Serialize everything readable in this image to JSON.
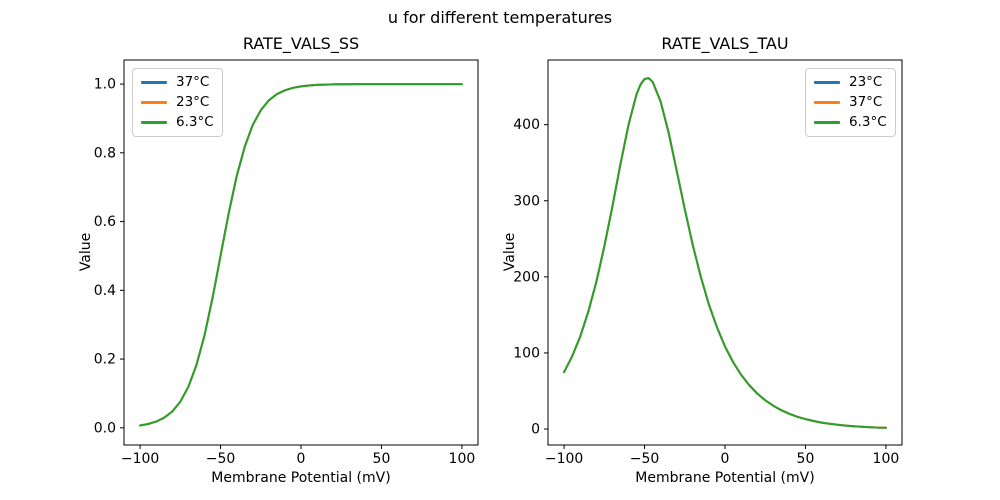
{
  "figure": {
    "suptitle": "u for different temperatures",
    "background_color": "#ffffff",
    "text_color": "#000000",
    "spine_color": "#000000"
  },
  "chart_data": [
    {
      "type": "line",
      "title": "RATE_VALS_SS",
      "xlabel": "Membrane Potential (mV)",
      "ylabel": "Value",
      "grid": false,
      "legend_position": "upper-left",
      "xlim": [
        -110,
        110
      ],
      "ylim": [
        -0.05,
        1.07
      ],
      "xticks": [
        -100,
        -50,
        0,
        50,
        100
      ],
      "xtick_labels": [
        "−100",
        "−50",
        "0",
        "50",
        "100"
      ],
      "yticks": [
        0.0,
        0.2,
        0.4,
        0.6,
        0.8,
        1.0
      ],
      "ytick_labels": [
        "0.0",
        "0.2",
        "0.4",
        "0.6",
        "0.8",
        "1.0"
      ],
      "note": "All three temperature curves overlap exactly; only the last-drawn green curve is visible. Sigmoid: half-max at -50 mV.",
      "x": [
        -100,
        -95,
        -90,
        -85,
        -80,
        -75,
        -70,
        -65,
        -60,
        -55,
        -52.5,
        -50,
        -47.5,
        -45,
        -40,
        -35,
        -30,
        -25,
        -20,
        -15,
        -10,
        -5,
        0,
        5,
        10,
        15,
        20,
        25,
        30,
        35,
        40,
        45,
        50,
        55,
        60,
        65,
        70,
        75,
        80,
        85,
        90,
        95,
        100
      ],
      "shared_values": [
        0.0067,
        0.011,
        0.018,
        0.0293,
        0.0474,
        0.0759,
        0.1192,
        0.1824,
        0.2689,
        0.3775,
        0.4378,
        0.5,
        0.5622,
        0.6225,
        0.7311,
        0.8176,
        0.8808,
        0.9241,
        0.9526,
        0.9707,
        0.982,
        0.989,
        0.9933,
        0.9959,
        0.9975,
        0.9985,
        0.9991,
        0.9994,
        0.9997,
        0.9998,
        0.9999,
        0.9999,
        0.9999,
        1.0,
        1.0,
        1.0,
        1.0,
        1.0,
        1.0,
        1.0,
        1.0,
        1.0,
        1.0
      ],
      "series": [
        {
          "name": "37°C",
          "color": "#1f77b4"
        },
        {
          "name": "23°C",
          "color": "#ff7f0e"
        },
        {
          "name": "6.3°C",
          "color": "#2ca02c"
        }
      ]
    },
    {
      "type": "line",
      "title": "RATE_VALS_TAU",
      "xlabel": "Membrane Potential (mV)",
      "ylabel": "Value",
      "grid": false,
      "legend_position": "upper-right",
      "xlim": [
        -110,
        110
      ],
      "ylim": [
        -21,
        485
      ],
      "xticks": [
        -100,
        -50,
        0,
        50,
        100
      ],
      "xtick_labels": [
        "−100",
        "−50",
        "0",
        "50",
        "100"
      ],
      "yticks": [
        0,
        100,
        200,
        300,
        400
      ],
      "ytick_labels": [
        "0",
        "100",
        "200",
        "300",
        "400"
      ],
      "note": "All three temperature curves overlap exactly; only the last-drawn green curve is visible. Bell-shaped time constant peaking ~460 near -50 mV.",
      "x": [
        -100,
        -95,
        -90,
        -85,
        -80,
        -75,
        -70,
        -65,
        -60,
        -55,
        -52.5,
        -50,
        -47.5,
        -45,
        -40,
        -35,
        -30,
        -25,
        -20,
        -15,
        -10,
        -5,
        0,
        5,
        10,
        15,
        20,
        25,
        30,
        35,
        40,
        45,
        50,
        55,
        60,
        65,
        70,
        75,
        80,
        85,
        90,
        95,
        100
      ],
      "shared_values": [
        74.8,
        95.5,
        121.5,
        153.8,
        193.2,
        239.9,
        292.5,
        347.8,
        399.7,
        439.8,
        452.8,
        460.0,
        461.2,
        456.3,
        430.4,
        389.0,
        339.5,
        288.9,
        241.6,
        199.7,
        163.7,
        133.5,
        108.5,
        88.1,
        71.3,
        57.8,
        46.7,
        37.8,
        30.6,
        24.7,
        20.0,
        16.1,
        13.0,
        10.6,
        8.5,
        6.9,
        5.6,
        4.5,
        3.6,
        2.9,
        2.4,
        1.9,
        1.6
      ],
      "series": [
        {
          "name": "23°C",
          "color": "#1f77b4"
        },
        {
          "name": "37°C",
          "color": "#ff7f0e"
        },
        {
          "name": "6.3°C",
          "color": "#2ca02c"
        }
      ]
    }
  ]
}
